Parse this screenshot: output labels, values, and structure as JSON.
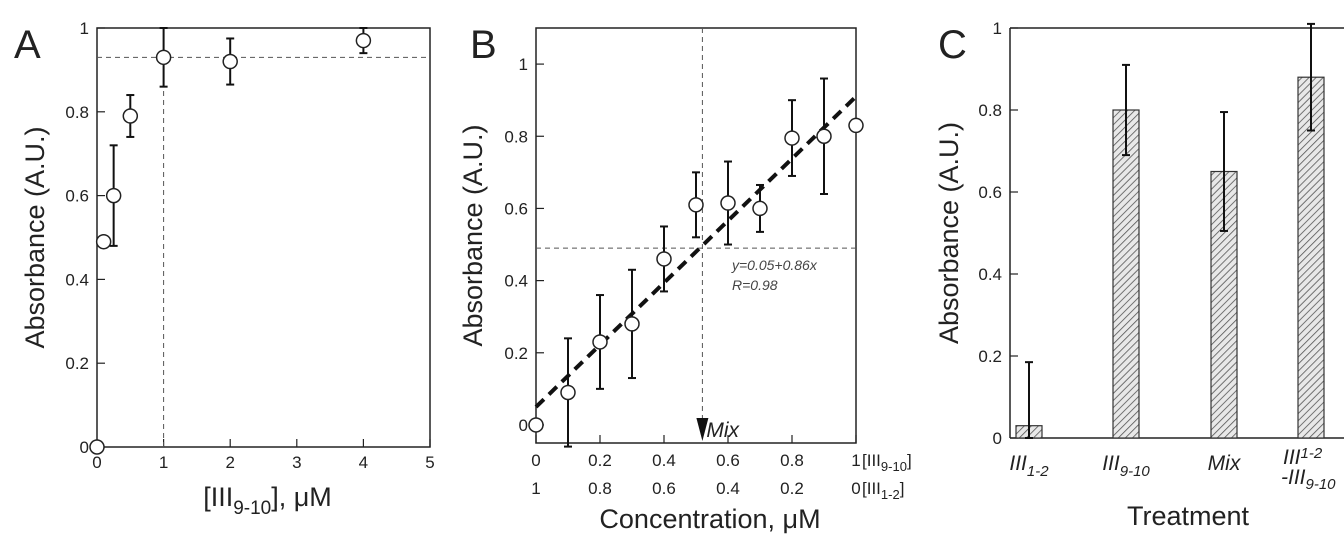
{
  "chart_data": [
    {
      "panel": "A",
      "type": "scatter",
      "xlabel": "[III9-10], μM",
      "xlabel_parts": {
        "main": "[III",
        "sub": "9-10",
        "rest": "], μM"
      },
      "ylabel": "Absorbance (A.U.)",
      "xlim": [
        0,
        5
      ],
      "ylim": [
        0,
        1.0
      ],
      "xticks": [
        "0",
        "1",
        "2",
        "3",
        "4",
        "5"
      ],
      "yticks": [
        "0",
        "0.2",
        "0.4",
        "0.6",
        "0.8",
        "1"
      ],
      "points": [
        {
          "x": 0,
          "y": 0.0,
          "err": 0
        },
        {
          "x": 0.1,
          "y": 0.49,
          "err": 0
        },
        {
          "x": 0.25,
          "y": 0.6,
          "err": 0.12
        },
        {
          "x": 0.5,
          "y": 0.79,
          "err": 0.05
        },
        {
          "x": 1,
          "y": 0.93,
          "err": 0.07
        },
        {
          "x": 2,
          "y": 0.92,
          "err": 0.055
        },
        {
          "x": 4,
          "y": 0.97,
          "err": 0.03
        }
      ],
      "hline": 0.93,
      "vline": 1,
      "grid": false
    },
    {
      "panel": "B",
      "type": "scatter",
      "xlabel": "Concentration, μM",
      "ylabel": "Absorbance (A.U.)",
      "xlim": [
        0,
        1
      ],
      "ylim": [
        -0.05,
        1.1
      ],
      "xticks_top": [
        "0",
        "0.2",
        "0.4",
        "0.6",
        "0.8",
        "1"
      ],
      "xticks_top_label": {
        "main": "[III",
        "sub": "9-10",
        "rest": "]"
      },
      "xticks_bottom": [
        "1",
        "0.8",
        "0.6",
        "0.4",
        "0.2",
        "0"
      ],
      "xticks_bottom_label": {
        "main": "[III",
        "sub": "1-2",
        "rest": "]"
      },
      "yticks": [
        "0",
        "0.2",
        "0.4",
        "0.6",
        "0.8",
        "1"
      ],
      "points": [
        {
          "x": 0,
          "y": 0.0,
          "err": 0
        },
        {
          "x": 0.1,
          "y": 0.09,
          "err": 0.15
        },
        {
          "x": 0.2,
          "y": 0.23,
          "err": 0.13
        },
        {
          "x": 0.3,
          "y": 0.28,
          "err": 0.15
        },
        {
          "x": 0.4,
          "y": 0.46,
          "err": 0.09
        },
        {
          "x": 0.5,
          "y": 0.61,
          "err": 0.09
        },
        {
          "x": 0.6,
          "y": 0.615,
          "err": 0.115
        },
        {
          "x": 0.7,
          "y": 0.6,
          "err": 0.065
        },
        {
          "x": 0.8,
          "y": 0.795,
          "err": 0.105
        },
        {
          "x": 0.9,
          "y": 0.8,
          "err": 0.16
        },
        {
          "x": 1.0,
          "y": 0.83,
          "err": 0
        }
      ],
      "fit": {
        "intercept": 0.05,
        "slope": 0.86
      },
      "fit_text": "y=0.05+0.86x",
      "r_text": "R=0.98",
      "hline": 0.49,
      "vline": 0.52,
      "mix_label": "Mix",
      "grid": false
    },
    {
      "panel": "C",
      "type": "bar",
      "xlabel": "Treatment",
      "ylabel": "Absorbance (A.U.)",
      "ylim": [
        0,
        1.0
      ],
      "yticks": [
        "0",
        "0.2",
        "0.4",
        "0.6",
        "0.8",
        "1"
      ],
      "categories": [
        {
          "main": "III",
          "sub": "1-2",
          "line2": ""
        },
        {
          "main": "III",
          "sub": "9-10",
          "line2": ""
        },
        {
          "main": "Mix",
          "sub": "",
          "line2": ""
        },
        {
          "main": "III",
          "sup": "1-2",
          "line2_main": "-III",
          "line2_sub": "9-10"
        }
      ],
      "values": [
        0.03,
        0.8,
        0.65,
        0.88
      ],
      "errors": [
        0.155,
        0.11,
        0.145,
        0.13
      ],
      "grid": false
    }
  ]
}
